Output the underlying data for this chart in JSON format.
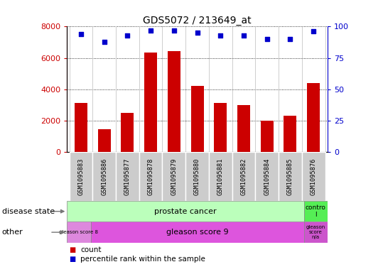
{
  "title": "GDS5072 / 213649_at",
  "samples": [
    "GSM1095883",
    "GSM1095886",
    "GSM1095877",
    "GSM1095878",
    "GSM1095879",
    "GSM1095880",
    "GSM1095881",
    "GSM1095882",
    "GSM1095884",
    "GSM1095885",
    "GSM1095876"
  ],
  "counts": [
    3150,
    1450,
    2500,
    6350,
    6450,
    4200,
    3150,
    3000,
    2000,
    2300,
    4400
  ],
  "percentiles": [
    94,
    88,
    93,
    97,
    97,
    95,
    93,
    93,
    90,
    90,
    96
  ],
  "ylim_left": [
    0,
    8000
  ],
  "ylim_right": [
    0,
    100
  ],
  "yticks_left": [
    0,
    2000,
    4000,
    6000,
    8000
  ],
  "yticks_right": [
    0,
    25,
    50,
    75,
    100
  ],
  "bar_color": "#cc0000",
  "dot_color": "#0000cc",
  "gray_box_color": "#cccccc",
  "gray_box_edge": "#999999",
  "prostate_cancer_color": "#bbffbb",
  "control_color": "#55ee55",
  "gleason8_color": "#dd88dd",
  "gleason9_color": "#dd55dd",
  "gleasonNA_color": "#cc55cc",
  "fig_width": 5.39,
  "fig_height": 3.93,
  "n_samples": 11,
  "gleason8_count": 1,
  "gleason9_count": 9,
  "prostate_count": 10,
  "control_count": 1
}
